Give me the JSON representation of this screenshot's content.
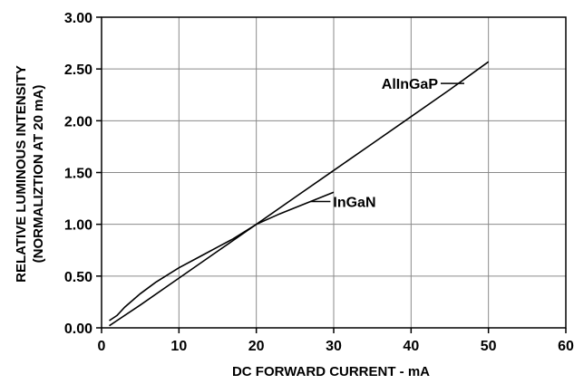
{
  "chart_data": {
    "type": "line",
    "title": "",
    "xlabel": "DC FORWARD CURRENT - mA",
    "ylabel_line1": "RELATIVE LUMINOUS INTENSITY",
    "ylabel_line2": "(NORMALIZTION AT 20 mA)",
    "xlim": [
      0,
      60
    ],
    "ylim": [
      0,
      3
    ],
    "x_ticks": [
      "0",
      "10",
      "20",
      "30",
      "40",
      "50",
      "60"
    ],
    "y_ticks": [
      "0.00",
      "0.50",
      "1.00",
      "1.50",
      "2.00",
      "2.50",
      "3.00"
    ],
    "grid": true,
    "series": [
      {
        "name": "AlInGaP",
        "label_anchor": [
          45,
          2.36
        ],
        "x": [
          1,
          5,
          10,
          15,
          20,
          25,
          30,
          35,
          40,
          45,
          50
        ],
        "y": [
          0.02,
          0.22,
          0.48,
          0.74,
          1.0,
          1.26,
          1.52,
          1.78,
          2.04,
          2.3,
          2.57
        ]
      },
      {
        "name": "InGaN",
        "label_anchor": [
          27,
          1.22
        ],
        "x": [
          1,
          2,
          3,
          5,
          7,
          10,
          13,
          15,
          17,
          20,
          23,
          25,
          28,
          30
        ],
        "y": [
          0.07,
          0.12,
          0.2,
          0.33,
          0.44,
          0.58,
          0.7,
          0.78,
          0.86,
          1.0,
          1.1,
          1.16,
          1.25,
          1.31
        ]
      }
    ]
  }
}
